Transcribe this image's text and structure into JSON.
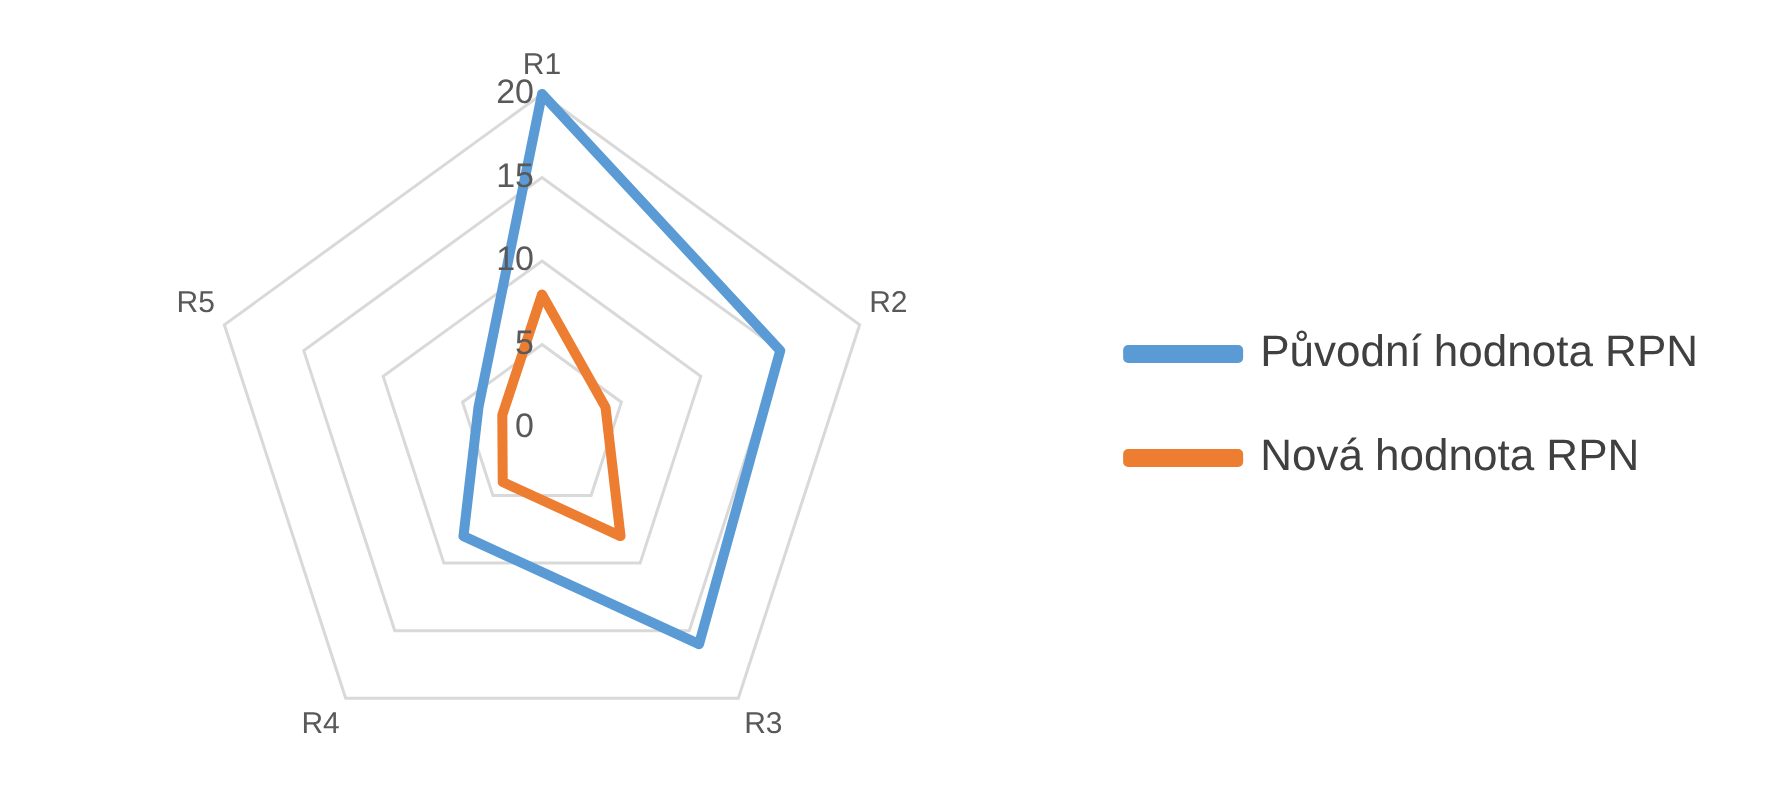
{
  "chart_data": {
    "type": "radar",
    "categories": [
      "R1",
      "R2",
      "R3",
      "R4",
      "R5"
    ],
    "series": [
      {
        "name": "Původní hodnota RPN",
        "color": "#5b9bd5",
        "values": [
          20,
          15,
          16,
          8,
          4
        ]
      },
      {
        "name": "Nová hodnota RPN",
        "color": "#ed7d31",
        "values": [
          8,
          4,
          8,
          4,
          2.5
        ]
      }
    ],
    "ylim": [
      0,
      20
    ],
    "yticks": [
      0,
      5,
      10,
      15,
      20
    ],
    "grid": true,
    "legend": "right",
    "marker": "none"
  }
}
